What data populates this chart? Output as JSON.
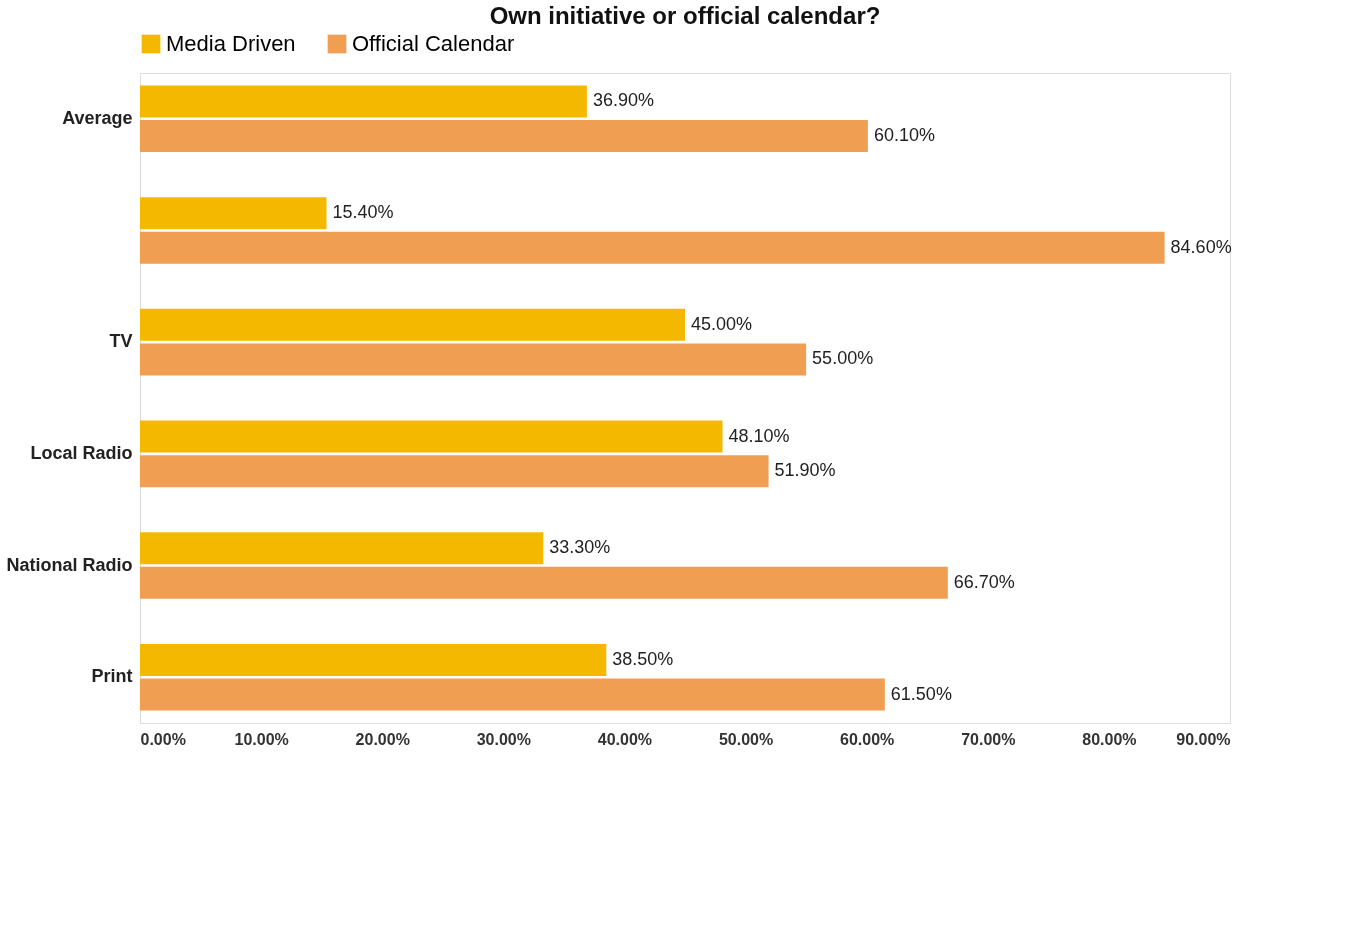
{
  "chart_data": {
    "type": "bar",
    "orientation": "horizontal",
    "title": "Own initiative or official calendar?",
    "categories": [
      "Average",
      null,
      "TV",
      "Local Radio",
      "National Radio",
      "Print"
    ],
    "series": [
      {
        "name": "Media Driven",
        "color": "#f5b800",
        "values": [
          36.9,
          15.4,
          45.0,
          48.1,
          33.3,
          38.5
        ],
        "value_labels": [
          "36.90%",
          "15.40%",
          "45.00%",
          "48.10%",
          "33.30%",
          "38.50%"
        ]
      },
      {
        "name": "Official Calendar",
        "color": "#ef9e52",
        "values": [
          60.1,
          84.6,
          55.0,
          51.9,
          66.7,
          61.5
        ],
        "value_labels": [
          "60.10%",
          "84.60%",
          "55.00%",
          "51.90%",
          "66.70%",
          "61.50%"
        ]
      }
    ],
    "xlim": [
      0,
      90
    ],
    "xticks": [
      {
        "value": 0,
        "label": "0.00%"
      },
      {
        "value": 10,
        "label": "10.00%"
      },
      {
        "value": 20,
        "label": "20.00%"
      },
      {
        "value": 30,
        "label": "30.00%"
      },
      {
        "value": 40,
        "label": "40.00%"
      },
      {
        "value": 50,
        "label": "50.00%"
      },
      {
        "value": 60,
        "label": "60.00%"
      },
      {
        "value": 70,
        "label": "70.00%"
      },
      {
        "value": 80,
        "label": "80.00%"
      },
      {
        "value": 90,
        "label": "90.00%"
      }
    ],
    "legend": "top",
    "grid": false
  }
}
